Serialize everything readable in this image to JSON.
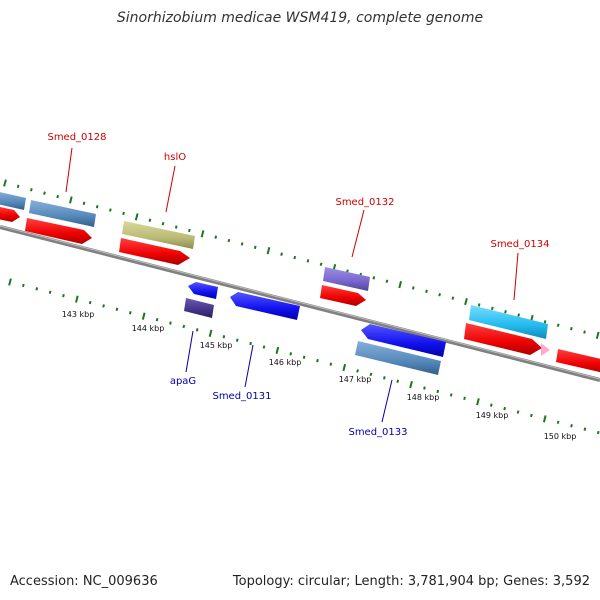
{
  "title": "Sinorhizobium medicae WSM419, complete genome",
  "footer": {
    "accession": "Accession: NC_009636",
    "summary": "Topology: circular; Length: 3,781,904 bp; Genes: 3,592"
  },
  "scale_labels": [
    "143 kbp",
    "144 kbp",
    "145 kbp",
    "146 kbp",
    "147 kbp",
    "148 kbp",
    "149 kbp",
    "150 kbp"
  ],
  "gene_labels": {
    "smed_0128": "Smed_0128",
    "hslo": "hslO",
    "smed_0132": "Smed_0132",
    "smed_0134": "Smed_0134",
    "apag": "apaG",
    "smed_0131": "Smed_0131",
    "smed_0133": "Smed_0133"
  },
  "colors": {
    "forward_label": "#cc0000",
    "reverse_label": "#0000aa",
    "tick": "#1a7a1a",
    "backbone": "#888888",
    "cds_red": "#ee0000",
    "steel_blue": "#5588bb",
    "khaki": "#bbbb77",
    "slate_purple": "#7766cc",
    "blue": "#1111ee",
    "dark_slate": "#443388",
    "cyan": "#22bbee",
    "pink": "#ffaacc"
  }
}
